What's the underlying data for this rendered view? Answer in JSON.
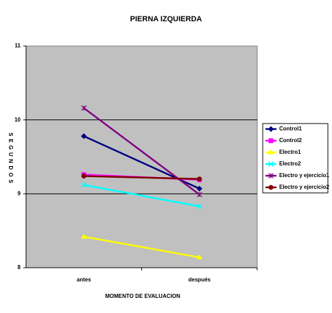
{
  "chart_data": {
    "type": "line",
    "title": "PIERNA IZQUIERDA",
    "x_label": "MOMENTO DE EVALUACION",
    "y_label": "SEGUNDOS",
    "categories": [
      "antes",
      "después"
    ],
    "ylim": [
      8,
      11
    ],
    "yticks": [
      8,
      9,
      10,
      11
    ],
    "grid": true,
    "legend": "right",
    "series": [
      {
        "name": "Control1",
        "color": "#000080",
        "marker": "diamond",
        "values": [
          9.78,
          9.07
        ]
      },
      {
        "name": "Control2",
        "color": "#ff00ff",
        "marker": "square",
        "values": [
          9.26,
          9.19
        ]
      },
      {
        "name": "Electro1",
        "color": "#ffff00",
        "marker": "triangle",
        "values": [
          8.42,
          8.14
        ]
      },
      {
        "name": "Electro2",
        "color": "#00ffff",
        "marker": "x",
        "values": [
          9.12,
          8.83
        ]
      },
      {
        "name": "Electro y ejercicio1",
        "color": "#800080",
        "marker": "star",
        "values": [
          10.16,
          8.99
        ]
      },
      {
        "name": "Electro y ejercicio2",
        "color": "#800000",
        "marker": "circle",
        "values": [
          9.24,
          9.2
        ]
      }
    ]
  }
}
